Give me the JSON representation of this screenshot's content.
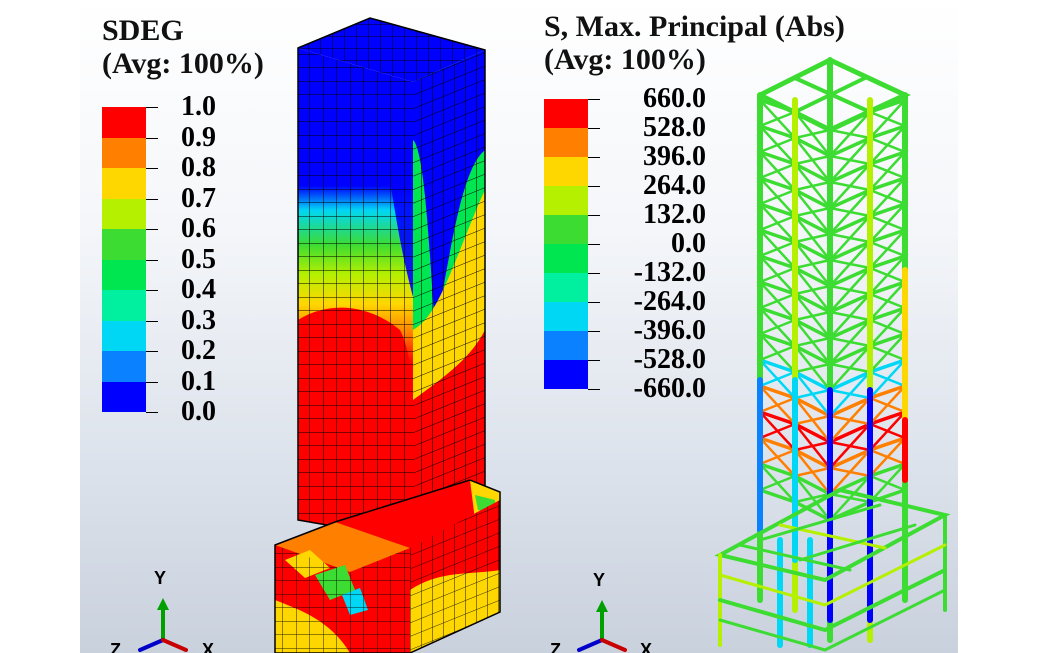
{
  "left_panel": {
    "title_line1": "SDEG",
    "title_line2": "(Avg: 100%)",
    "legend": {
      "labels": [
        "1.0",
        "0.9",
        "0.8",
        "0.7",
        "0.6",
        "0.5",
        "0.4",
        "0.3",
        "0.2",
        "0.1",
        "0.0"
      ],
      "colors": [
        "#ff0000",
        "#ff7f00",
        "#ffd700",
        "#b4f000",
        "#3cdc32",
        "#00e650",
        "#00f0a0",
        "#00d7f5",
        "#0a82ff",
        "#0000ff"
      ]
    },
    "axis": {
      "y": "Y",
      "z": "Z",
      "x": "X"
    }
  },
  "right_panel": {
    "title_line1": "S, Max. Principal (Abs)",
    "title_line2": "(Avg: 100%)",
    "legend": {
      "labels": [
        "660.0",
        "528.0",
        "396.0",
        "264.0",
        "132.0",
        "0.0",
        "-132.0",
        "-264.0",
        "-396.0",
        "-528.0",
        "-660.0"
      ],
      "colors": [
        "#ff0000",
        "#ff7f00",
        "#ffd700",
        "#b4f000",
        "#3cdc32",
        "#00e650",
        "#00f0a0",
        "#00d7f5",
        "#0a82ff",
        "#0000ff"
      ]
    },
    "axis": {
      "y": "Y",
      "z": "Z",
      "x": "X"
    }
  }
}
